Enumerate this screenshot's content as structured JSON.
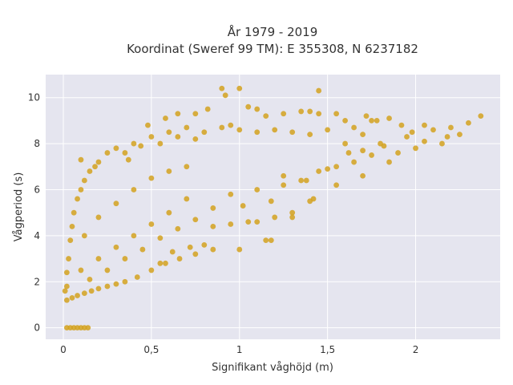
{
  "chart_data": {
    "type": "scatter",
    "title_lines": [
      "År 1979 - 2019",
      "Koordinat (Sweref 99 TM): E 355308, N 6237182"
    ],
    "xlabel": "Signifikant våghöjd (m)",
    "ylabel": "Vågperiod (s)",
    "xlim": [
      -0.1,
      2.48
    ],
    "ylim": [
      -0.5,
      11.0
    ],
    "x_ticks": [
      0,
      0.5,
      1,
      1.5,
      2
    ],
    "x_tick_labels": [
      "0",
      "0,5",
      "1",
      "1,5",
      "2"
    ],
    "y_ticks": [
      0,
      2,
      4,
      6,
      8,
      10
    ],
    "y_tick_labels": [
      "0",
      "2",
      "4",
      "6",
      "8",
      "10"
    ],
    "grid": true,
    "colors": {
      "marker": "#d4a21f",
      "plot_bg": "#e5e5ef",
      "grid": "#ffffff"
    },
    "series": [
      {
        "points": [
          [
            0.02,
            0.0
          ],
          [
            0.04,
            0.0
          ],
          [
            0.06,
            0.0
          ],
          [
            0.08,
            0.0
          ],
          [
            0.1,
            0.0
          ],
          [
            0.12,
            0.0
          ],
          [
            0.14,
            0.0
          ],
          [
            0.02,
            1.2
          ],
          [
            0.05,
            1.3
          ],
          [
            0.08,
            1.4
          ],
          [
            0.12,
            1.5
          ],
          [
            0.16,
            1.6
          ],
          [
            0.2,
            1.7
          ],
          [
            0.25,
            1.8
          ],
          [
            0.3,
            1.9
          ],
          [
            0.35,
            2.0
          ],
          [
            0.42,
            2.2
          ],
          [
            0.5,
            2.5
          ],
          [
            0.58,
            2.8
          ],
          [
            0.66,
            3.0
          ],
          [
            0.75,
            3.2
          ],
          [
            0.85,
            3.4
          ],
          [
            1.0,
            3.4
          ],
          [
            1.15,
            3.8
          ],
          [
            1.3,
            5.0
          ],
          [
            1.42,
            5.6
          ],
          [
            1.55,
            6.2
          ],
          [
            1.7,
            6.6
          ],
          [
            1.85,
            7.2
          ],
          [
            2.0,
            7.8
          ],
          [
            2.15,
            8.0
          ],
          [
            2.25,
            8.4
          ],
          [
            2.3,
            8.9
          ],
          [
            2.37,
            9.2
          ],
          [
            2.2,
            8.7
          ],
          [
            2.05,
            8.8
          ],
          [
            1.95,
            8.3
          ],
          [
            1.8,
            8.0
          ],
          [
            1.7,
            8.4
          ],
          [
            1.6,
            8.0
          ],
          [
            1.75,
            9.0
          ],
          [
            1.65,
            8.7
          ],
          [
            1.5,
            8.6
          ],
          [
            1.4,
            8.4
          ],
          [
            1.3,
            8.5
          ],
          [
            1.2,
            8.6
          ],
          [
            1.1,
            8.5
          ],
          [
            1.0,
            8.6
          ],
          [
            0.9,
            8.7
          ],
          [
            0.8,
            8.5
          ],
          [
            0.7,
            8.7
          ],
          [
            0.6,
            8.5
          ],
          [
            0.5,
            8.3
          ],
          [
            0.4,
            8.0
          ],
          [
            0.35,
            7.6
          ],
          [
            0.3,
            7.8
          ],
          [
            0.25,
            7.6
          ],
          [
            0.2,
            7.2
          ],
          [
            0.15,
            6.8
          ],
          [
            0.12,
            6.4
          ],
          [
            0.1,
            6.0
          ],
          [
            0.08,
            5.6
          ],
          [
            0.06,
            5.0
          ],
          [
            0.05,
            4.4
          ],
          [
            0.04,
            3.8
          ],
          [
            0.03,
            3.0
          ],
          [
            0.02,
            2.4
          ],
          [
            0.02,
            1.8
          ],
          [
            0.01,
            1.6
          ],
          [
            0.1,
            7.3
          ],
          [
            0.18,
            7.0
          ],
          [
            0.37,
            7.3
          ],
          [
            0.44,
            7.9
          ],
          [
            0.55,
            8.0
          ],
          [
            0.65,
            8.3
          ],
          [
            0.75,
            8.2
          ],
          [
            0.95,
            8.8
          ],
          [
            1.05,
            9.6
          ],
          [
            1.1,
            9.5
          ],
          [
            1.0,
            10.4
          ],
          [
            0.9,
            10.4
          ],
          [
            0.92,
            10.1
          ],
          [
            0.75,
            9.3
          ],
          [
            0.82,
            9.5
          ],
          [
            0.65,
            9.3
          ],
          [
            0.58,
            9.1
          ],
          [
            0.48,
            8.8
          ],
          [
            1.6,
            9.0
          ],
          [
            1.55,
            9.3
          ],
          [
            1.45,
            9.3
          ],
          [
            1.4,
            9.4
          ],
          [
            1.35,
            9.4
          ],
          [
            1.25,
            9.3
          ],
          [
            1.15,
            9.2
          ],
          [
            1.45,
            10.3
          ],
          [
            1.72,
            9.2
          ],
          [
            1.78,
            9.0
          ],
          [
            1.85,
            9.1
          ],
          [
            1.92,
            8.8
          ],
          [
            1.98,
            8.5
          ],
          [
            2.1,
            8.6
          ],
          [
            2.18,
            8.3
          ],
          [
            2.05,
            8.1
          ],
          [
            1.9,
            7.6
          ],
          [
            1.75,
            7.5
          ],
          [
            1.65,
            7.2
          ],
          [
            1.55,
            7.0
          ],
          [
            1.45,
            6.8
          ],
          [
            1.35,
            6.4
          ],
          [
            1.25,
            6.2
          ],
          [
            1.1,
            6.0
          ],
          [
            0.95,
            5.8
          ],
          [
            0.85,
            5.2
          ],
          [
            0.75,
            4.7
          ],
          [
            0.65,
            4.3
          ],
          [
            0.55,
            3.9
          ],
          [
            0.45,
            3.4
          ],
          [
            0.35,
            3.0
          ],
          [
            0.25,
            2.5
          ],
          [
            0.15,
            2.1
          ],
          [
            1.05,
            4.6
          ],
          [
            1.1,
            4.6
          ],
          [
            0.95,
            4.5
          ],
          [
            0.85,
            4.4
          ],
          [
            0.8,
            3.6
          ],
          [
            1.02,
            5.3
          ],
          [
            1.18,
            5.5
          ],
          [
            1.2,
            4.8
          ],
          [
            1.18,
            3.8
          ],
          [
            1.3,
            4.8
          ],
          [
            1.4,
            5.5
          ],
          [
            1.25,
            6.6
          ],
          [
            1.38,
            6.4
          ],
          [
            1.5,
            6.9
          ],
          [
            1.62,
            7.6
          ],
          [
            1.7,
            7.7
          ],
          [
            1.82,
            7.9
          ],
          [
            0.6,
            6.8
          ],
          [
            0.7,
            7.0
          ],
          [
            0.5,
            6.5
          ],
          [
            0.4,
            6.0
          ],
          [
            0.3,
            5.4
          ],
          [
            0.2,
            4.8
          ],
          [
            0.12,
            4.0
          ],
          [
            0.7,
            5.6
          ],
          [
            0.6,
            5.0
          ],
          [
            0.5,
            4.5
          ],
          [
            0.4,
            4.0
          ],
          [
            0.3,
            3.5
          ],
          [
            0.2,
            3.0
          ],
          [
            0.1,
            2.5
          ],
          [
            0.55,
            2.8
          ],
          [
            0.62,
            3.3
          ],
          [
            0.72,
            3.5
          ]
        ]
      }
    ]
  }
}
